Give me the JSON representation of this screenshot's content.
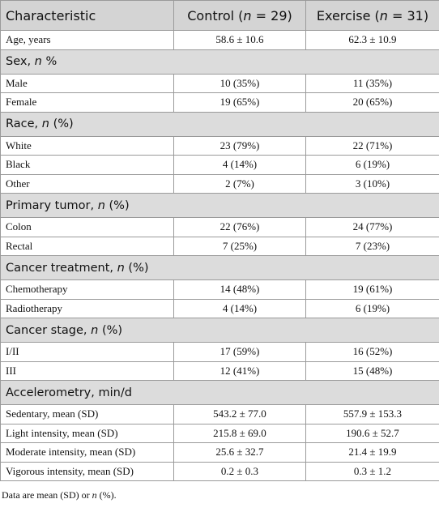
{
  "table": {
    "header": [
      [
        {
          "text": "Characteristic"
        }
      ],
      [
        {
          "text": "Control ("
        },
        {
          "text": "n",
          "italic": true
        },
        {
          "text": " = 29)"
        }
      ],
      [
        {
          "text": "Exercise ("
        },
        {
          "text": "n",
          "italic": true
        },
        {
          "text": " = 31)"
        }
      ]
    ],
    "body": [
      {
        "cells": [
          "Age, years",
          "58.6 ± 10.6",
          "62.3 ± 10.9"
        ]
      },
      {
        "section": [
          {
            "text": "Sex, "
          },
          {
            "text": "n",
            "italic": true
          },
          {
            "text": " %"
          }
        ]
      },
      {
        "cells": [
          "Male",
          "10 (35%)",
          "11 (35%)"
        ]
      },
      {
        "cells": [
          "Female",
          "19 (65%)",
          "20 (65%)"
        ]
      },
      {
        "section": [
          {
            "text": "Race, "
          },
          {
            "text": "n",
            "italic": true
          },
          {
            "text": " (%)"
          }
        ]
      },
      {
        "cells": [
          "White",
          "23 (79%)",
          "22 (71%)"
        ]
      },
      {
        "cells": [
          "Black",
          "4 (14%)",
          "6 (19%)"
        ]
      },
      {
        "cells": [
          "Other",
          "2 (7%)",
          "3 (10%)"
        ]
      },
      {
        "section": [
          {
            "text": "Primary tumor, "
          },
          {
            "text": "n",
            "italic": true
          },
          {
            "text": " (%)"
          }
        ]
      },
      {
        "cells": [
          "Colon",
          "22 (76%)",
          "24 (77%)"
        ]
      },
      {
        "cells": [
          "Rectal",
          "7 (25%)",
          "7 (23%)"
        ]
      },
      {
        "section": [
          {
            "text": "Cancer treatment, "
          },
          {
            "text": "n",
            "italic": true
          },
          {
            "text": " (%)"
          }
        ]
      },
      {
        "cells": [
          "Chemotherapy",
          "14 (48%)",
          "19 (61%)"
        ]
      },
      {
        "cells": [
          "Radiotherapy",
          "4 (14%)",
          "6 (19%)"
        ]
      },
      {
        "section": [
          {
            "text": "Cancer stage, "
          },
          {
            "text": "n",
            "italic": true
          },
          {
            "text": " (%)"
          }
        ]
      },
      {
        "cells": [
          "I/II",
          "17 (59%)",
          "16 (52%)"
        ]
      },
      {
        "cells": [
          "III",
          "12 (41%)",
          "15 (48%)"
        ]
      },
      {
        "section": [
          {
            "text": "Accelerometry, min/d"
          }
        ]
      },
      {
        "cells": [
          "Sedentary, mean (SD)",
          "543.2 ± 77.0",
          "557.9 ± 153.3"
        ]
      },
      {
        "cells": [
          "Light intensity, mean (SD)",
          "215.8 ± 69.0",
          "190.6 ± 52.7"
        ]
      },
      {
        "cells": [
          "Moderate intensity, mean (SD)",
          "25.6 ± 32.7",
          "21.4 ± 19.9"
        ]
      },
      {
        "cells": [
          "Vigorous intensity, mean (SD)",
          "0.2 ± 0.3",
          "0.3 ± 1.2"
        ]
      }
    ],
    "footnote": [
      {
        "text": "Data are mean (SD) or "
      },
      {
        "text": "n",
        "italic": true
      },
      {
        "text": " (%)."
      }
    ]
  }
}
